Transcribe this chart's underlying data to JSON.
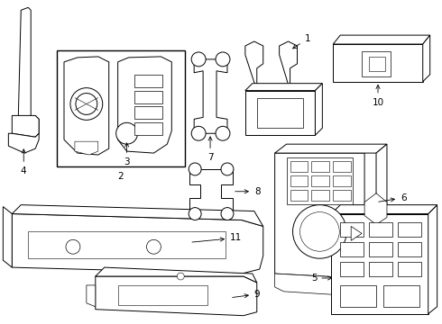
{
  "bg_color": "#ffffff",
  "line_color": "#000000",
  "lw": 0.7,
  "fs": 7.5
}
